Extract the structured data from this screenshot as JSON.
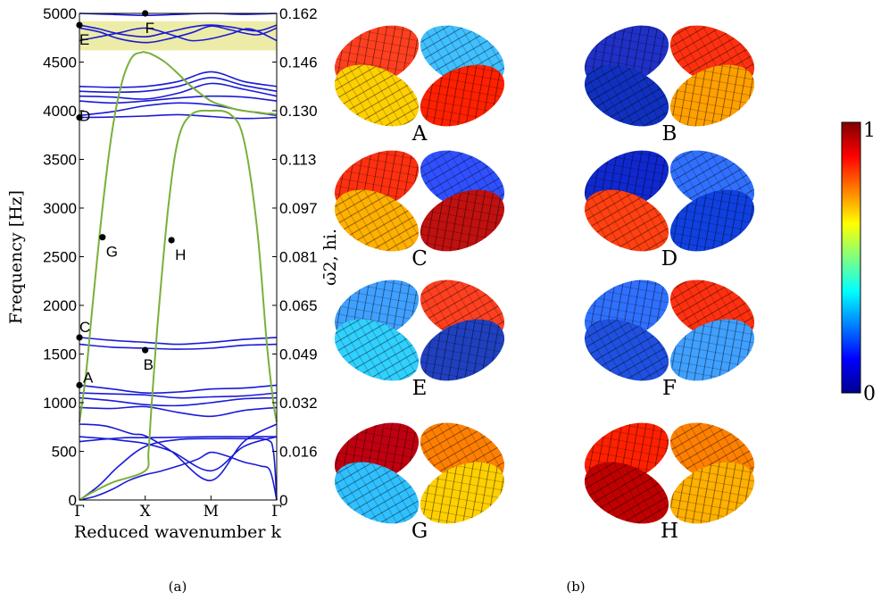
{
  "chart_data": [
    {
      "type": "line",
      "xlabel": "Reduced wavenumber k",
      "ylabel": "Frequency [Hz]",
      "ylabel_right": "ω̄2, hi.",
      "x_ticks": [
        "Γ",
        "X",
        "M",
        "Γ"
      ],
      "ylim": [
        0,
        5000
      ],
      "y_ticks": [
        0,
        500,
        1000,
        1500,
        2000,
        2500,
        3000,
        3500,
        4000,
        4500,
        5000
      ],
      "y_ticks_right": [
        "0",
        "0.016",
        "0.032",
        "0.049",
        "0.065",
        "0.081",
        "0.097",
        "0.113",
        "0.130",
        "0.146",
        "0.162"
      ],
      "grid": false,
      "band_gap": [
        4620,
        4920
      ],
      "series": [
        {
          "color": "#1a1ad8",
          "x": [
            0,
            0.25,
            0.5,
            0.75,
            1,
            1.2,
            1.5,
            1.8,
            2,
            2.25,
            2.5,
            2.75,
            2.9,
            3
          ],
          "y": [
            0,
            40,
            110,
            200,
            260,
            290,
            350,
            420,
            490,
            450,
            390,
            350,
            300,
            0
          ]
        },
        {
          "color": "#1a1ad8",
          "x": [
            0,
            0.3,
            0.6,
            1,
            1.5,
            2,
            2.5,
            2.85,
            2.95,
            3
          ],
          "y": [
            0,
            150,
            350,
            550,
            620,
            630,
            630,
            620,
            500,
            0
          ]
        },
        {
          "color": "#1a1ad8",
          "x": [
            0,
            0.3,
            0.7,
            1,
            1.5,
            2,
            2.5,
            3
          ],
          "y": [
            600,
            620,
            640,
            640,
            645,
            650,
            650,
            650
          ]
        },
        {
          "color": "#1a1ad8",
          "x": [
            0,
            0.4,
            0.8,
            1,
            1.4,
            2,
            2.5,
            3
          ],
          "y": [
            650,
            630,
            600,
            580,
            500,
            300,
            550,
            650
          ]
        },
        {
          "color": "#1a1ad8",
          "x": [
            0,
            0.4,
            0.8,
            1,
            1.4,
            2,
            2.5,
            3
          ],
          "y": [
            780,
            760,
            680,
            660,
            500,
            200,
            600,
            780
          ]
        },
        {
          "color": "#1a1ad8",
          "x": [
            0,
            0.5,
            1,
            1.5,
            2,
            2.5,
            3
          ],
          "y": [
            950,
            940,
            960,
            900,
            860,
            920,
            950
          ]
        },
        {
          "color": "#1a1ad8",
          "x": [
            0,
            0.5,
            1,
            1.5,
            2,
            2.5,
            3
          ],
          "y": [
            1050,
            1020,
            980,
            970,
            1000,
            1040,
            1050
          ]
        },
        {
          "color": "#1a1ad8",
          "x": [
            0,
            0.5,
            1,
            1.5,
            2,
            2.5,
            3
          ],
          "y": [
            1100,
            1090,
            1080,
            1050,
            1060,
            1070,
            1100
          ]
        },
        {
          "color": "#1a1ad8",
          "x": [
            0,
            0.5,
            1,
            1.5,
            2,
            2.5,
            3
          ],
          "y": [
            1180,
            1140,
            1100,
            1110,
            1140,
            1150,
            1180
          ]
        },
        {
          "color": "#1a1ad8",
          "x": [
            0,
            0.5,
            1,
            1.5,
            2,
            2.5,
            3
          ],
          "y": [
            1600,
            1570,
            1560,
            1550,
            1560,
            1590,
            1600
          ]
        },
        {
          "color": "#1a1ad8",
          "x": [
            0,
            0.5,
            1,
            1.5,
            2,
            2.5,
            3
          ],
          "y": [
            1670,
            1640,
            1620,
            1600,
            1620,
            1650,
            1670
          ]
        },
        {
          "color": "#1a1ad8",
          "x": [
            0,
            0.5,
            1,
            1.5,
            2,
            2.5,
            3
          ],
          "y": [
            3930,
            3935,
            3945,
            3960,
            3940,
            3920,
            3930
          ]
        },
        {
          "color": "#1a1ad8",
          "x": [
            0,
            0.5,
            1,
            1.5,
            2,
            2.5,
            3
          ],
          "y": [
            3950,
            3990,
            4050,
            4080,
            4060,
            4000,
            3950
          ]
        },
        {
          "color": "#1a1ad8",
          "x": [
            0,
            0.5,
            1,
            1.5,
            2,
            2.5,
            3
          ],
          "y": [
            4100,
            4080,
            4100,
            4130,
            4150,
            4140,
            4100
          ]
        },
        {
          "color": "#1a1ad8",
          "x": [
            0,
            0.5,
            1,
            1.5,
            2,
            2.5,
            3
          ],
          "y": [
            4150,
            4140,
            4120,
            4180,
            4280,
            4220,
            4150
          ]
        },
        {
          "color": "#1a1ad8",
          "x": [
            0,
            0.5,
            1,
            1.5,
            2,
            2.5,
            3
          ],
          "y": [
            4200,
            4190,
            4200,
            4250,
            4340,
            4260,
            4200
          ]
        },
        {
          "color": "#1a1ad8",
          "x": [
            0,
            0.5,
            1,
            1.5,
            2,
            2.5,
            3
          ],
          "y": [
            4250,
            4240,
            4250,
            4300,
            4400,
            4300,
            4250
          ]
        },
        {
          "color": "#1a1ad8",
          "x": [
            0,
            0.3,
            0.6,
            1,
            1.3,
            1.7,
            2,
            2.3,
            2.7,
            3
          ],
          "y": [
            4880,
            4840,
            4790,
            4760,
            4800,
            4860,
            4880,
            4860,
            4820,
            4880
          ]
        },
        {
          "color": "#1a1ad8",
          "x": [
            0,
            0.3,
            0.6,
            1,
            1.3,
            1.7,
            2,
            2.3,
            2.7,
            3
          ],
          "y": [
            4850,
            4810,
            4740,
            4700,
            4730,
            4800,
            4870,
            4830,
            4780,
            4850
          ]
        },
        {
          "color": "#1a1ad8",
          "x": [
            0,
            0.3,
            0.6,
            1,
            1.4,
            1.7,
            2,
            2.3,
            2.6,
            3
          ],
          "y": [
            4720,
            4760,
            4800,
            4850,
            4780,
            4720,
            4740,
            4790,
            4840,
            4720
          ]
        },
        {
          "color": "#1a1ad8",
          "x": [
            0,
            0.5,
            1,
            1.5,
            2,
            2.5,
            3
          ],
          "y": [
            5000,
            4990,
            4980,
            4990,
            5000,
            4990,
            5000
          ]
        },
        {
          "color": "#7ab03a",
          "x": [
            0,
            0.1,
            0.2,
            0.35,
            0.5,
            0.65,
            0.8,
            0.95,
            1,
            1.1,
            1.3,
            1.5,
            1.7,
            2,
            2.2,
            2.4,
            2.6,
            2.75,
            2.85,
            2.92,
            3
          ],
          "y": [
            800,
            1300,
            2000,
            3000,
            3800,
            4300,
            4550,
            4600,
            4600,
            4580,
            4500,
            4380,
            4250,
            4100,
            4050,
            4010,
            3990,
            3980,
            3970,
            3970,
            3960
          ]
        },
        {
          "color": "#7ab03a",
          "x": [
            0,
            0.2,
            0.5,
            1,
            1.05,
            1.1,
            1.2,
            1.35,
            1.5,
            1.7,
            2,
            2.3,
            2.5,
            2.7,
            2.85,
            2.95,
            3
          ],
          "y": [
            0,
            80,
            180,
            300,
            500,
            1000,
            1900,
            3000,
            3700,
            3960,
            4000,
            3960,
            3700,
            2800,
            1600,
            1000,
            800
          ]
        }
      ],
      "markers": [
        {
          "label": "A",
          "x": 0,
          "y": 1180
        },
        {
          "label": "B",
          "x": 1,
          "y": 1540
        },
        {
          "label": "C",
          "x": 0,
          "y": 1670
        },
        {
          "label": "D",
          "x": 0,
          "y": 3930
        },
        {
          "label": "E",
          "x": 0,
          "y": 4880
        },
        {
          "label": "F",
          "x": 1,
          "y": 5000
        },
        {
          "label": "G",
          "x": 0.35,
          "y": 2700
        },
        {
          "label": "H",
          "x": 1.4,
          "y": 2670
        }
      ]
    },
    {
      "type": "heatmap",
      "colorbar_ticks": [
        "0",
        "1"
      ],
      "panels": [
        "A",
        "B",
        "C",
        "D",
        "E",
        "F",
        "G",
        "H"
      ]
    }
  ],
  "captions": [
    "(a)",
    "(b)"
  ],
  "colors": {
    "blue": "#1a1ad8",
    "green": "#7ab03a",
    "gap": "#ececa8"
  }
}
